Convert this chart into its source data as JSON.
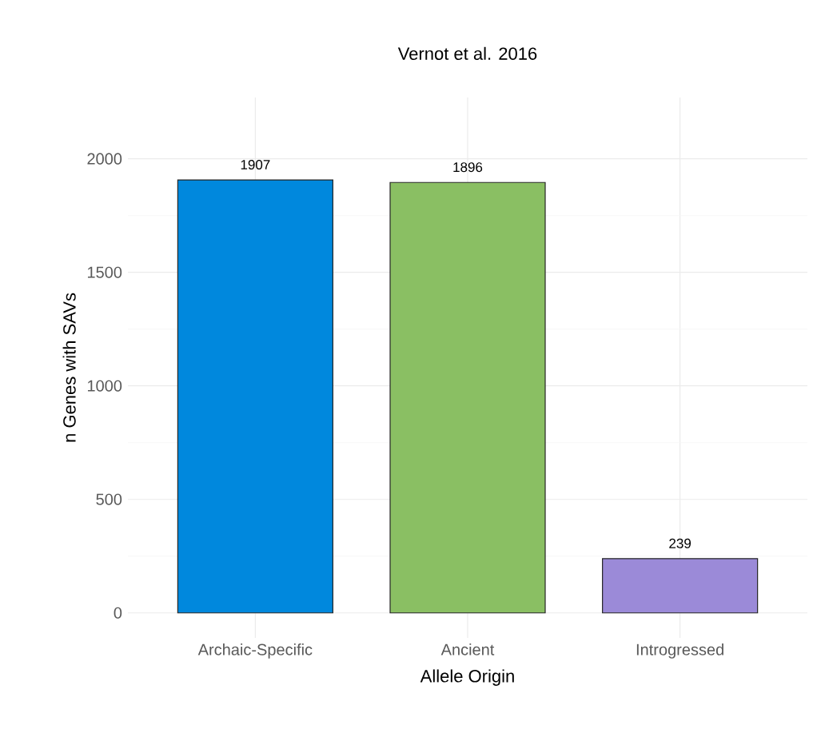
{
  "chart_data": {
    "type": "bar",
    "title": "Vernot et al. 2016",
    "xlabel": "Allele Origin",
    "ylabel": "n Genes with SAVs",
    "categories": [
      "Archaic-Specific",
      "Ancient",
      "Introgressed"
    ],
    "values": [
      1907,
      1896,
      239
    ],
    "colors": [
      "#0088dd",
      "#8abf63",
      "#9b8ad8"
    ],
    "ylim": [
      -110,
      2270
    ],
    "yticks": [
      0,
      500,
      1000,
      1500,
      2000
    ],
    "grid": true,
    "data_labels": true
  }
}
